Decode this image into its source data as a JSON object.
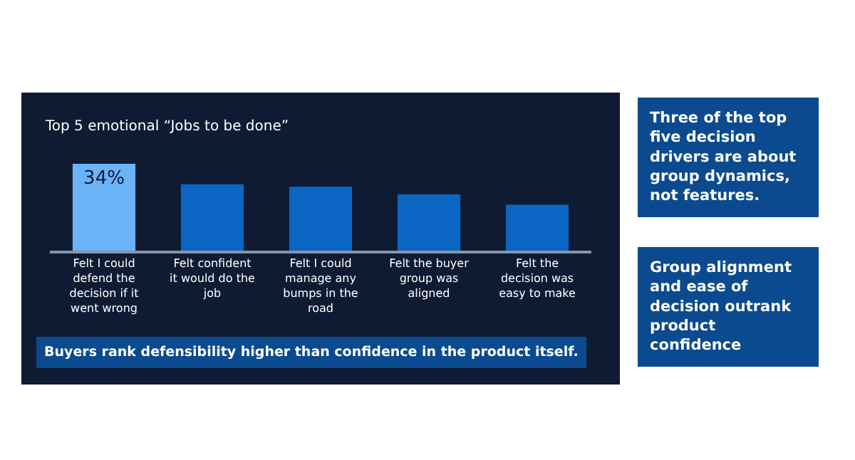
{
  "chart_data": {
    "type": "bar",
    "title": "Top 5 emotional “Jobs to be done”",
    "categories": [
      "Felt I could defend the decision if it went wrong",
      "Felt confident it would do the job",
      "Felt I could manage any bumps in the road",
      "Felt the buyer group was aligned",
      "Felt the decision was easy to make"
    ],
    "values": [
      34,
      26,
      25,
      22,
      18
    ],
    "colors": [
      "#6cb2f7",
      "#0a66c2",
      "#0a66c2",
      "#0a66c2",
      "#0a66c2"
    ],
    "value_labels": [
      "34%",
      null,
      null,
      null,
      null
    ],
    "annotations": [
      "Buyers rank defensibility higher than confidence in the product itself.",
      "Three of the top five decision drivers are about group dynamics, not features.",
      "Group alignment and ease of decision outrank product confidence"
    ],
    "grid": false,
    "legend": false
  }
}
